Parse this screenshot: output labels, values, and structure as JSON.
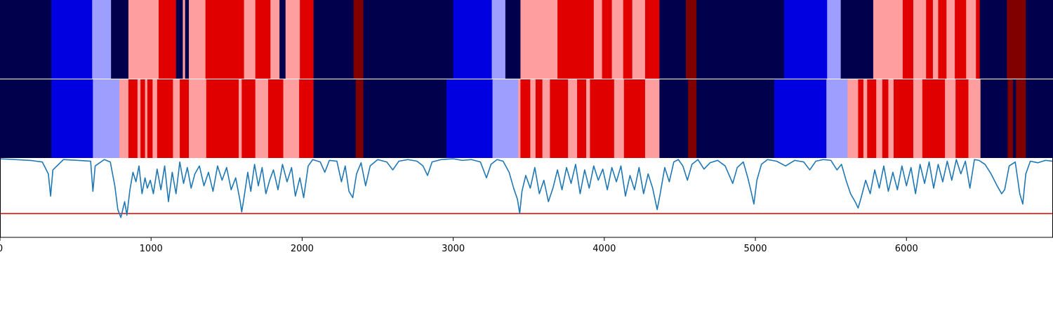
{
  "chart_data": {
    "type": "segmentation-timeline",
    "xlim": [
      0,
      6970
    ],
    "xticks": [
      0,
      1000,
      2000,
      3000,
      4000,
      5000,
      6000
    ],
    "colors": {
      "0": "#00004c",
      "1": "#0000e0",
      "2": "#9e9eff",
      "3": "#ff9e9e",
      "4": "#e00000",
      "5": "#800000"
    },
    "tracks": [
      {
        "segments": [
          [
            0,
            340,
            0
          ],
          [
            340,
            610,
            1
          ],
          [
            610,
            735,
            2
          ],
          [
            735,
            850,
            0
          ],
          [
            850,
            1050,
            3
          ],
          [
            1050,
            1165,
            4
          ],
          [
            1165,
            1210,
            0
          ],
          [
            1210,
            1225,
            3
          ],
          [
            1225,
            1250,
            0
          ],
          [
            1250,
            1360,
            3
          ],
          [
            1360,
            1615,
            4
          ],
          [
            1615,
            1690,
            3
          ],
          [
            1690,
            1790,
            4
          ],
          [
            1790,
            1850,
            3
          ],
          [
            1850,
            1890,
            0
          ],
          [
            1890,
            1985,
            3
          ],
          [
            1985,
            2075,
            4
          ],
          [
            2075,
            2340,
            0
          ],
          [
            2340,
            2405,
            5
          ],
          [
            2405,
            3000,
            0
          ],
          [
            3000,
            3255,
            1
          ],
          [
            3255,
            3345,
            2
          ],
          [
            3345,
            3445,
            0
          ],
          [
            3445,
            3690,
            3
          ],
          [
            3690,
            3930,
            4
          ],
          [
            3930,
            3985,
            3
          ],
          [
            3985,
            4050,
            4
          ],
          [
            4050,
            4125,
            3
          ],
          [
            4125,
            4185,
            4
          ],
          [
            4185,
            4270,
            3
          ],
          [
            4270,
            4365,
            4
          ],
          [
            4365,
            4540,
            0
          ],
          [
            4540,
            4610,
            5
          ],
          [
            4610,
            5190,
            0
          ],
          [
            5190,
            5475,
            1
          ],
          [
            5475,
            5565,
            2
          ],
          [
            5565,
            5780,
            0
          ],
          [
            5780,
            5975,
            3
          ],
          [
            5975,
            6045,
            4
          ],
          [
            6045,
            6130,
            3
          ],
          [
            6130,
            6175,
            4
          ],
          [
            6175,
            6210,
            3
          ],
          [
            6210,
            6265,
            4
          ],
          [
            6265,
            6320,
            3
          ],
          [
            6320,
            6395,
            4
          ],
          [
            6395,
            6460,
            3
          ],
          [
            6460,
            6485,
            4
          ],
          [
            6485,
            6665,
            0
          ],
          [
            6665,
            6790,
            5
          ],
          [
            6790,
            6970,
            0
          ]
        ]
      },
      {
        "segments": [
          [
            0,
            340,
            0
          ],
          [
            340,
            615,
            1
          ],
          [
            615,
            790,
            2
          ],
          [
            790,
            850,
            3
          ],
          [
            850,
            910,
            4
          ],
          [
            910,
            930,
            3
          ],
          [
            930,
            960,
            4
          ],
          [
            960,
            975,
            3
          ],
          [
            975,
            1010,
            4
          ],
          [
            1010,
            1040,
            3
          ],
          [
            1040,
            1145,
            4
          ],
          [
            1145,
            1190,
            3
          ],
          [
            1190,
            1250,
            4
          ],
          [
            1250,
            1365,
            3
          ],
          [
            1365,
            1580,
            4
          ],
          [
            1580,
            1600,
            3
          ],
          [
            1600,
            1690,
            4
          ],
          [
            1690,
            1775,
            3
          ],
          [
            1775,
            1875,
            4
          ],
          [
            1875,
            1980,
            3
          ],
          [
            1980,
            2075,
            4
          ],
          [
            2075,
            2355,
            0
          ],
          [
            2355,
            2405,
            5
          ],
          [
            2405,
            2955,
            0
          ],
          [
            2955,
            3260,
            1
          ],
          [
            3260,
            3430,
            2
          ],
          [
            3430,
            3445,
            3
          ],
          [
            3445,
            3510,
            4
          ],
          [
            3510,
            3545,
            3
          ],
          [
            3545,
            3590,
            4
          ],
          [
            3590,
            3640,
            3
          ],
          [
            3640,
            3760,
            4
          ],
          [
            3760,
            3820,
            3
          ],
          [
            3820,
            3880,
            4
          ],
          [
            3880,
            3905,
            3
          ],
          [
            3905,
            4065,
            4
          ],
          [
            4065,
            4130,
            3
          ],
          [
            4130,
            4270,
            4
          ],
          [
            4270,
            4365,
            3
          ],
          [
            4365,
            4555,
            0
          ],
          [
            4555,
            4610,
            5
          ],
          [
            4610,
            5125,
            0
          ],
          [
            5125,
            5470,
            1
          ],
          [
            5470,
            5610,
            2
          ],
          [
            5610,
            5680,
            3
          ],
          [
            5680,
            5715,
            4
          ],
          [
            5715,
            5740,
            3
          ],
          [
            5740,
            5800,
            4
          ],
          [
            5800,
            5840,
            3
          ],
          [
            5840,
            5880,
            4
          ],
          [
            5880,
            5915,
            3
          ],
          [
            5915,
            6045,
            4
          ],
          [
            6045,
            6105,
            3
          ],
          [
            6105,
            6255,
            4
          ],
          [
            6255,
            6325,
            3
          ],
          [
            6325,
            6410,
            4
          ],
          [
            6410,
            6490,
            3
          ],
          [
            6490,
            6670,
            0
          ],
          [
            6670,
            6705,
            5
          ],
          [
            6705,
            6725,
            0
          ],
          [
            6725,
            6790,
            5
          ],
          [
            6790,
            6970,
            0
          ]
        ]
      }
    ],
    "line": {
      "color": "#1f77b4",
      "ylim": [
        0,
        1
      ],
      "threshold": 0.3,
      "threshold_color": "#e00000",
      "points": [
        [
          0,
          0.99
        ],
        [
          100,
          0.98
        ],
        [
          200,
          0.97
        ],
        [
          280,
          0.95
        ],
        [
          320,
          0.8
        ],
        [
          335,
          0.52
        ],
        [
          350,
          0.85
        ],
        [
          420,
          0.98
        ],
        [
          520,
          0.97
        ],
        [
          600,
          0.96
        ],
        [
          615,
          0.58
        ],
        [
          630,
          0.9
        ],
        [
          690,
          0.98
        ],
        [
          730,
          0.95
        ],
        [
          760,
          0.65
        ],
        [
          780,
          0.35
        ],
        [
          800,
          0.25
        ],
        [
          825,
          0.45
        ],
        [
          840,
          0.28
        ],
        [
          860,
          0.6
        ],
        [
          880,
          0.82
        ],
        [
          900,
          0.7
        ],
        [
          920,
          0.9
        ],
        [
          940,
          0.55
        ],
        [
          960,
          0.75
        ],
        [
          975,
          0.62
        ],
        [
          995,
          0.72
        ],
        [
          1015,
          0.55
        ],
        [
          1040,
          0.86
        ],
        [
          1065,
          0.6
        ],
        [
          1090,
          0.9
        ],
        [
          1115,
          0.45
        ],
        [
          1140,
          0.82
        ],
        [
          1165,
          0.55
        ],
        [
          1190,
          0.95
        ],
        [
          1215,
          0.68
        ],
        [
          1240,
          0.88
        ],
        [
          1265,
          0.62
        ],
        [
          1290,
          0.8
        ],
        [
          1320,
          0.9
        ],
        [
          1350,
          0.65
        ],
        [
          1380,
          0.82
        ],
        [
          1410,
          0.58
        ],
        [
          1440,
          0.9
        ],
        [
          1470,
          0.72
        ],
        [
          1500,
          0.88
        ],
        [
          1530,
          0.6
        ],
        [
          1560,
          0.75
        ],
        [
          1590,
          0.45
        ],
        [
          1600,
          0.32
        ],
        [
          1615,
          0.5
        ],
        [
          1640,
          0.82
        ],
        [
          1660,
          0.58
        ],
        [
          1685,
          0.92
        ],
        [
          1710,
          0.65
        ],
        [
          1735,
          0.88
        ],
        [
          1760,
          0.55
        ],
        [
          1785,
          0.72
        ],
        [
          1810,
          0.85
        ],
        [
          1840,
          0.6
        ],
        [
          1870,
          0.92
        ],
        [
          1900,
          0.7
        ],
        [
          1930,
          0.88
        ],
        [
          1955,
          0.52
        ],
        [
          1985,
          0.75
        ],
        [
          2010,
          0.5
        ],
        [
          2040,
          0.9
        ],
        [
          2070,
          0.98
        ],
        [
          2120,
          0.95
        ],
        [
          2150,
          0.82
        ],
        [
          2180,
          0.97
        ],
        [
          2230,
          0.96
        ],
        [
          2260,
          0.7
        ],
        [
          2285,
          0.9
        ],
        [
          2310,
          0.58
        ],
        [
          2335,
          0.5
        ],
        [
          2360,
          0.8
        ],
        [
          2390,
          0.94
        ],
        [
          2420,
          0.65
        ],
        [
          2450,
          0.9
        ],
        [
          2500,
          0.98
        ],
        [
          2560,
          0.95
        ],
        [
          2600,
          0.85
        ],
        [
          2640,
          0.96
        ],
        [
          2700,
          0.98
        ],
        [
          2760,
          0.96
        ],
        [
          2800,
          0.9
        ],
        [
          2830,
          0.78
        ],
        [
          2860,
          0.95
        ],
        [
          2920,
          0.98
        ],
        [
          3000,
          0.99
        ],
        [
          3060,
          0.97
        ],
        [
          3120,
          0.98
        ],
        [
          3180,
          0.95
        ],
        [
          3220,
          0.75
        ],
        [
          3250,
          0.92
        ],
        [
          3290,
          0.98
        ],
        [
          3330,
          0.96
        ],
        [
          3370,
          0.82
        ],
        [
          3400,
          0.62
        ],
        [
          3425,
          0.48
        ],
        [
          3440,
          0.3
        ],
        [
          3455,
          0.58
        ],
        [
          3480,
          0.78
        ],
        [
          3510,
          0.62
        ],
        [
          3540,
          0.88
        ],
        [
          3570,
          0.55
        ],
        [
          3600,
          0.72
        ],
        [
          3630,
          0.45
        ],
        [
          3660,
          0.62
        ],
        [
          3690,
          0.85
        ],
        [
          3720,
          0.6
        ],
        [
          3750,
          0.88
        ],
        [
          3780,
          0.68
        ],
        [
          3810,
          0.92
        ],
        [
          3840,
          0.55
        ],
        [
          3870,
          0.85
        ],
        [
          3900,
          0.62
        ],
        [
          3930,
          0.9
        ],
        [
          3960,
          0.72
        ],
        [
          3990,
          0.86
        ],
        [
          4020,
          0.6
        ],
        [
          4050,
          0.88
        ],
        [
          4080,
          0.7
        ],
        [
          4110,
          0.9
        ],
        [
          4140,
          0.52
        ],
        [
          4170,
          0.78
        ],
        [
          4200,
          0.6
        ],
        [
          4230,
          0.88
        ],
        [
          4260,
          0.55
        ],
        [
          4290,
          0.8
        ],
        [
          4320,
          0.62
        ],
        [
          4350,
          0.35
        ],
        [
          4370,
          0.55
        ],
        [
          4400,
          0.88
        ],
        [
          4430,
          0.7
        ],
        [
          4460,
          0.95
        ],
        [
          4490,
          0.98
        ],
        [
          4520,
          0.9
        ],
        [
          4550,
          0.72
        ],
        [
          4580,
          0.92
        ],
        [
          4620,
          0.98
        ],
        [
          4660,
          0.86
        ],
        [
          4700,
          0.94
        ],
        [
          4750,
          0.97
        ],
        [
          4800,
          0.9
        ],
        [
          4850,
          0.68
        ],
        [
          4880,
          0.88
        ],
        [
          4920,
          0.95
        ],
        [
          4950,
          0.75
        ],
        [
          4975,
          0.55
        ],
        [
          4990,
          0.42
        ],
        [
          5010,
          0.72
        ],
        [
          5040,
          0.92
        ],
        [
          5080,
          0.98
        ],
        [
          5140,
          0.96
        ],
        [
          5200,
          0.9
        ],
        [
          5260,
          0.97
        ],
        [
          5320,
          0.95
        ],
        [
          5360,
          0.85
        ],
        [
          5400,
          0.96
        ],
        [
          5450,
          0.98
        ],
        [
          5500,
          0.97
        ],
        [
          5540,
          0.85
        ],
        [
          5570,
          0.92
        ],
        [
          5600,
          0.72
        ],
        [
          5630,
          0.55
        ],
        [
          5660,
          0.45
        ],
        [
          5680,
          0.37
        ],
        [
          5700,
          0.5
        ],
        [
          5730,
          0.72
        ],
        [
          5760,
          0.55
        ],
        [
          5790,
          0.85
        ],
        [
          5820,
          0.62
        ],
        [
          5850,
          0.9
        ],
        [
          5880,
          0.58
        ],
        [
          5910,
          0.82
        ],
        [
          5940,
          0.6
        ],
        [
          5970,
          0.9
        ],
        [
          6000,
          0.65
        ],
        [
          6030,
          0.88
        ],
        [
          6060,
          0.55
        ],
        [
          6090,
          0.92
        ],
        [
          6120,
          0.68
        ],
        [
          6150,
          0.95
        ],
        [
          6180,
          0.62
        ],
        [
          6210,
          0.92
        ],
        [
          6240,
          0.7
        ],
        [
          6270,
          0.96
        ],
        [
          6300,
          0.72
        ],
        [
          6330,
          0.98
        ],
        [
          6360,
          0.8
        ],
        [
          6390,
          0.96
        ],
        [
          6420,
          0.62
        ],
        [
          6450,
          0.98
        ],
        [
          6480,
          0.97
        ],
        [
          6520,
          0.92
        ],
        [
          6560,
          0.8
        ],
        [
          6600,
          0.65
        ],
        [
          6630,
          0.55
        ],
        [
          6650,
          0.6
        ],
        [
          6680,
          0.9
        ],
        [
          6720,
          0.95
        ],
        [
          6750,
          0.55
        ],
        [
          6770,
          0.42
        ],
        [
          6790,
          0.8
        ],
        [
          6820,
          0.96
        ],
        [
          6870,
          0.94
        ],
        [
          6920,
          0.97
        ],
        [
          6970,
          0.96
        ]
      ]
    }
  }
}
